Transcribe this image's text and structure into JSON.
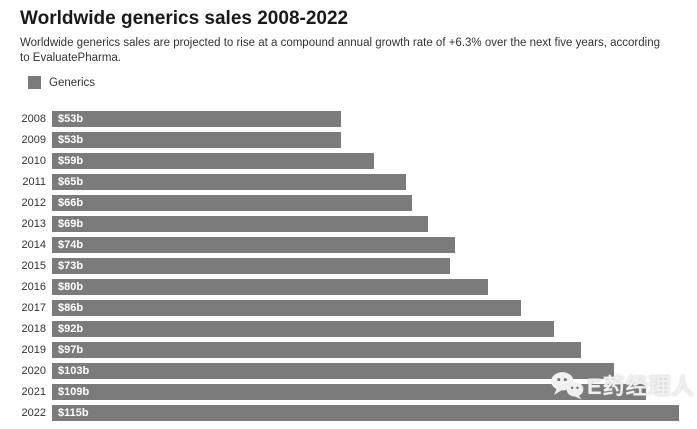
{
  "header": {
    "title": "Worldwide generics sales 2008-2022",
    "subtitle": "Worldwide generics sales are projected to rise at a compound annual growth rate of +6.3% over the next five years, according to EvaluatePharma."
  },
  "legend": {
    "label": "Generics"
  },
  "colors": {
    "bar": "#7b7b7b",
    "bar_label": "#ffffff",
    "title_text": "#1a1a1a",
    "body_text": "#333333",
    "watermark": "#f0f0f0"
  },
  "watermark": {
    "icon": "wechat-icon",
    "text": "E药经理人"
  },
  "chart_data": {
    "type": "bar",
    "orientation": "horizontal",
    "title": "Worldwide generics sales 2008-2022",
    "series_name": "Generics",
    "categories": [
      "2008",
      "2009",
      "2010",
      "2011",
      "2012",
      "2013",
      "2014",
      "2015",
      "2016",
      "2017",
      "2018",
      "2019",
      "2020",
      "2021",
      "2022"
    ],
    "values": [
      53,
      53,
      59,
      65,
      66,
      69,
      74,
      73,
      80,
      86,
      92,
      97,
      103,
      109,
      115
    ],
    "bar_labels": [
      "$53b",
      "$53b",
      "$59b",
      "$65b",
      "$66b",
      "$69b",
      "$74b",
      "$73b",
      "$80b",
      "$86b",
      "$92b",
      "$97b",
      "$103b",
      "$109b",
      "$115b"
    ],
    "xlabel": "",
    "ylabel": "",
    "xlim": [
      0,
      115
    ],
    "grid": false,
    "legend_position": "top-left"
  }
}
